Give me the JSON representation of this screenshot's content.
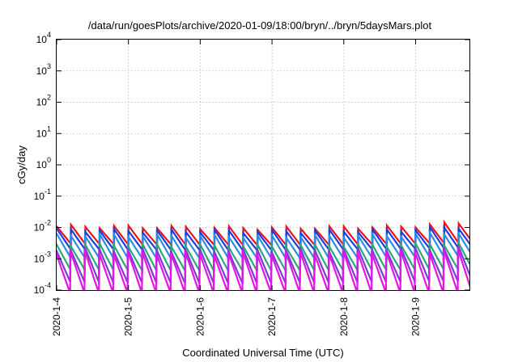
{
  "chart_data": {
    "type": "line",
    "title": "/data/run/goesPlots/archive/2020-01-09/18:00/bryn/../bryn/5daysMars.plot",
    "xlabel": "Coordinated Universal Time (UTC)",
    "ylabel": "cGy/day",
    "yscale": "log",
    "ylim": [
      0.0001,
      10000
    ],
    "xlim": [
      "2020-01-04",
      "2020-01-09T18:00"
    ],
    "grid": true,
    "legend": "none",
    "x_ticks": [
      "2020-1-4",
      "2020-1-5",
      "2020-1-6",
      "2020-1-7",
      "2020-1-8",
      "2020-1-9"
    ],
    "y_ticks": [
      {
        "base": "10",
        "exp": "-4",
        "value": 0.0001
      },
      {
        "base": "10",
        "exp": "-3",
        "value": 0.001
      },
      {
        "base": "10",
        "exp": "-2",
        "value": 0.01
      },
      {
        "base": "10",
        "exp": "-1",
        "value": 0.1
      },
      {
        "base": "10",
        "exp": "0",
        "value": 1
      },
      {
        "base": "10",
        "exp": "1",
        "value": 10
      },
      {
        "base": "10",
        "exp": "2",
        "value": 100
      },
      {
        "base": "10",
        "exp": "3",
        "value": 1000
      },
      {
        "base": "10",
        "exp": "4",
        "value": 10000
      }
    ],
    "sawtooth_period_hours": 4.8,
    "series": [
      {
        "color": "#e8141e",
        "peak_values": [
          0.011,
          0.0105,
          0.01,
          0.0095,
          0.01,
          0.0105,
          0.015
        ],
        "trough_values": [
          0.003,
          0.0028,
          0.0027,
          0.0026,
          0.0027,
          0.0029,
          0.0032
        ]
      },
      {
        "color": "#1e3cdc",
        "peak_values": [
          0.0085,
          0.008,
          0.0078,
          0.0075,
          0.0078,
          0.0082,
          0.011
        ],
        "trough_values": [
          0.002,
          0.0019,
          0.0018,
          0.0018,
          0.0019,
          0.002,
          0.0022
        ]
      },
      {
        "color": "#2a8ce6",
        "peak_values": [
          0.006,
          0.0058,
          0.0055,
          0.0053,
          0.0055,
          0.0058,
          0.0075
        ],
        "trough_values": [
          0.0011,
          0.001,
          0.001,
          0.001,
          0.001,
          0.0011,
          0.0012
        ]
      },
      {
        "color": "#2aa87a",
        "peak_values": [
          0.003,
          0.0029,
          0.0028,
          0.0027,
          0.0028,
          0.0029,
          0.0034
        ],
        "trough_values": [
          0.00045,
          0.00042,
          0.0004,
          0.0004,
          0.00041,
          0.00043,
          0.00046
        ]
      },
      {
        "color": "#7a3cd2",
        "peak_values": [
          0.0022,
          0.0021,
          0.002,
          0.002,
          0.0021,
          0.0022,
          0.0025
        ],
        "trough_values": [
          0.00018,
          0.00017,
          0.00016,
          0.00016,
          0.00017,
          0.00018,
          0.00019
        ]
      },
      {
        "color": "#e614e6",
        "peak_values": [
          0.0018,
          0.0017,
          0.0016,
          0.0016,
          0.0017,
          0.0018,
          0.002
        ],
        "trough_values": [
          8e-05,
          8e-05,
          8e-05,
          8e-05,
          8e-05,
          8e-05,
          8e-05
        ]
      }
    ]
  }
}
